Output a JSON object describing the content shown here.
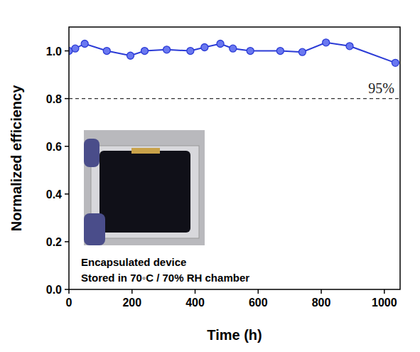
{
  "chart_data": {
    "type": "line",
    "x_label": "Time (h)",
    "y_label": "Normalized efficiency",
    "x": [
      0,
      20,
      50,
      120,
      195,
      240,
      310,
      385,
      430,
      480,
      520,
      575,
      670,
      740,
      815,
      890,
      1035
    ],
    "series": [
      {
        "name": "Encapsulated device",
        "color": "#2b3bd6",
        "marker": "circle",
        "line_style": "solid",
        "values": [
          1.0,
          1.01,
          1.03,
          1.0,
          0.98,
          1.0,
          1.005,
          1.0,
          1.015,
          1.03,
          1.01,
          1.0,
          1.0,
          0.995,
          1.035,
          1.02,
          0.95
        ]
      }
    ],
    "xlim": [
      0,
      1050
    ],
    "xticks": [
      0,
      200,
      400,
      600,
      800,
      1000
    ],
    "ylim": [
      0,
      1.1
    ],
    "yticks": [
      {
        "value": 0,
        "label": "0.0"
      },
      0.2,
      0.4,
      0.6,
      0.8,
      {
        "value": 1,
        "label": "1.0"
      }
    ],
    "reference_line": {
      "value": 0.8,
      "label": "95%",
      "line_style": "dashed"
    },
    "annotations": [
      "Encapsulated device",
      "Stored in 70◦C / 70% RH chamber"
    ],
    "grid": false
  }
}
